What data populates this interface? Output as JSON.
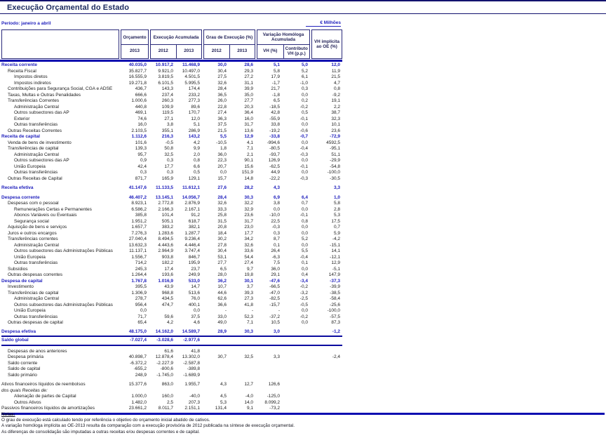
{
  "page": {
    "title": "Execução Orçamental do Estado",
    "period_label": "Período: janeiro a abril",
    "unit_label": "€ Milhões"
  },
  "colors": {
    "accent_blue": "#2121bd",
    "line_navy": "#0b0bb0",
    "title_navy": "#1b2a5e"
  },
  "table": {
    "header": {
      "orcamento": {
        "label": "Orçamento",
        "year": "2013"
      },
      "execucao": {
        "label": "Execução Acumulada",
        "years": [
          "2012",
          "2013"
        ]
      },
      "grau": {
        "label": "Grau de Execução (%)",
        "years": [
          "2012",
          "2013"
        ]
      },
      "variacao": {
        "label": "Variação Homóloga Acumulada",
        "sub1": "VH (%)",
        "sub2_line1": "Contributo",
        "sub2_line2": "VH (p.p.)"
      },
      "implicita": {
        "line1": "VH implícita",
        "line2": "ao OE (%)"
      }
    },
    "rows": [
      {
        "label": "Receita corrente",
        "style": "b",
        "values": [
          "40.035,0",
          "10.917,2",
          "11.468,9",
          "30,0",
          "28,6",
          "5,1",
          "5,0",
          "12,0"
        ]
      },
      {
        "label": "Receita Fiscal",
        "indent": 1,
        "values": [
          "35.827,7",
          "9.921,0",
          "10.497,0",
          "30,4",
          "29,3",
          "5,8",
          "5,2",
          "11,9"
        ]
      },
      {
        "label": "Impostos diretos",
        "indent": 2,
        "values": [
          "16.555,9",
          "3.819,5",
          "4.501,5",
          "27,5",
          "27,2",
          "17,9",
          "6,1",
          "21,5"
        ]
      },
      {
        "label": "Impostos indiretos",
        "indent": 2,
        "values": [
          "19.271,8",
          "6.101,5",
          "5.995,5",
          "32,6",
          "31,1",
          "-1,7",
          "-1,0",
          "4,7"
        ]
      },
      {
        "label": "Contribuições para Segurança Social, CGA e ADSE",
        "indent": 1,
        "values": [
          "436,7",
          "143,3",
          "174,4",
          "28,4",
          "39,9",
          "21,7",
          "0,3",
          "0,8"
        ]
      },
      {
        "label": "Taxas, Multas e Outras Penalidades",
        "indent": 1,
        "values": [
          "666,6",
          "237,4",
          "233,2",
          "36,5",
          "35,0",
          "-1,8",
          "0,0",
          "-9,2"
        ]
      },
      {
        "label": "Transferências Correntes",
        "indent": 1,
        "values": [
          "1.000,6",
          "260,3",
          "277,3",
          "26,0",
          "27,7",
          "6,5",
          "0,2",
          "19,1"
        ]
      },
      {
        "label": "Administração Central",
        "indent": 2,
        "values": [
          "440,8",
          "109,9",
          "89,6",
          "22,8",
          "20,3",
          "-18,5",
          "-0,2",
          "2,2"
        ]
      },
      {
        "label": "Outros subsectores das AP",
        "indent": 2,
        "values": [
          "469,1",
          "119,5",
          "170,7",
          "27,4",
          "36,4",
          "42,8",
          "0,5",
          "38,7"
        ]
      },
      {
        "label": "Exterior",
        "indent": 2,
        "values": [
          "74,6",
          "27,1",
          "12,0",
          "36,3",
          "16,0",
          "-55,9",
          "-0,1",
          "32,3"
        ]
      },
      {
        "label": "Outras transferências",
        "indent": 2,
        "values": [
          "16,0",
          "3,8",
          "5,1",
          "37,5",
          "31,7",
          "33,8",
          "0,0",
          "10,1"
        ]
      },
      {
        "label": "Outras Receitas Correntes",
        "indent": 1,
        "values": [
          "2.103,5",
          "355,1",
          "286,9",
          "21,5",
          "13,6",
          "-19,2",
          "-0,6",
          "23,6"
        ]
      },
      {
        "label": "Receita de capital",
        "style": "b",
        "values": [
          "1.112,6",
          "216,3",
          "143,2",
          "5,5",
          "12,9",
          "-33,8",
          "-0,7",
          "-72,9"
        ]
      },
      {
        "label": "Venda de bens de investimento",
        "indent": 1,
        "values": [
          "101,6",
          "-0,5",
          "4,2",
          "-10,5",
          "4,1",
          "-994,6",
          "0,0",
          "4592,5"
        ]
      },
      {
        "label": "Transferências de capital",
        "indent": 1,
        "values": [
          "139,3",
          "50,8",
          "9,9",
          "1,8",
          "7,1",
          "-80,5",
          "-0,4",
          "-95,1"
        ]
      },
      {
        "label": "Administração Central",
        "indent": 2,
        "values": [
          "95,7",
          "32,5",
          "2,0",
          "36,0",
          "2,1",
          "-93,7",
          "-0,3",
          "51,1"
        ]
      },
      {
        "label": "Outros subsectores das AP",
        "indent": 2,
        "values": [
          "0,9",
          "0,3",
          "0,8",
          "22,3",
          "90,1",
          "126,9",
          "0,0",
          "-29,9"
        ]
      },
      {
        "label": "União Europeia",
        "indent": 2,
        "values": [
          "42,4",
          "17,7",
          "6,6",
          "20,7",
          "15,6",
          "-62,5",
          "-0,1",
          "-54,8"
        ]
      },
      {
        "label": "Outras transferências",
        "indent": 2,
        "values": [
          "0,3",
          "0,3",
          "0,5",
          "0,0",
          "151,9",
          "44,9",
          "0,0",
          "-100,0"
        ]
      },
      {
        "label": "Outras Receitas de Capital",
        "indent": 1,
        "values": [
          "871,7",
          "165,9",
          "129,1",
          "15,7",
          "14,8",
          "-22,2",
          "-0,3",
          "-30,5"
        ]
      },
      {
        "type": "spacer",
        "h": 5
      },
      {
        "label": "Receita efetiva",
        "style": "b",
        "values": [
          "41.147,6",
          "11.133,5",
          "11.612,1",
          "27,6",
          "28,2",
          "4,3",
          "",
          "3,3"
        ]
      },
      {
        "type": "spacer",
        "h": 5
      },
      {
        "label": "Despesa corrente",
        "style": "b",
        "values": [
          "46.407,2",
          "13.145,1",
          "14.056,7",
          "28,4",
          "30,3",
          "6,9",
          "6,4",
          "1,0"
        ]
      },
      {
        "label": "Despesas com o pessoal",
        "indent": 1,
        "values": [
          "8.923,1",
          "2.772,8",
          "2.876,9",
          "32,6",
          "32,2",
          "3,8",
          "0,7",
          "5,8"
        ]
      },
      {
        "label": "Remunerações Certas e Permanentes",
        "indent": 2,
        "values": [
          "6.586,2",
          "2.166,3",
          "2.167,1",
          "33,3",
          "32,9",
          "0,0",
          "0,0",
          "2,8"
        ]
      },
      {
        "label": "Abonos Variáveis ou Eventuais",
        "indent": 2,
        "values": [
          "385,8",
          "101,4",
          "91,2",
          "25,8",
          "23,6",
          "-10,0",
          "-0,1",
          "5,3"
        ]
      },
      {
        "label": "Segurança social",
        "indent": 2,
        "values": [
          "1.951,2",
          "505,1",
          "618,7",
          "31,5",
          "31,7",
          "22,5",
          "0,8",
          "17,5"
        ]
      },
      {
        "label": "Aquisição de bens e serviços",
        "indent": 1,
        "values": [
          "1.657,7",
          "383,2",
          "382,1",
          "20,8",
          "23,0",
          "-0,3",
          "0,0",
          "0,7"
        ]
      },
      {
        "label": "Juros e outros encargos",
        "indent": 1,
        "values": [
          "7.276,3",
          "1.283,6",
          "1.287,7",
          "18,4",
          "17,7",
          "0,3",
          "0,0",
          "5,9"
        ]
      },
      {
        "label": "Transferências correntes",
        "indent": 1,
        "values": [
          "27.040,4",
          "8.494,5",
          "9.236,4",
          "30,2",
          "34,2",
          "8,7",
          "5,2",
          "-4,2"
        ]
      },
      {
        "label": "Administração Central",
        "indent": 2,
        "values": [
          "13.632,3",
          "4.443,6",
          "4.446,4",
          "27,8",
          "32,6",
          "0,1",
          "0,0",
          "-15,1"
        ]
      },
      {
        "label": "Outros subsectores das Administrações Públicas",
        "indent": 2,
        "values": [
          "11.137,1",
          "2.964,9",
          "3.747,4",
          "30,4",
          "33,6",
          "26,4",
          "5,5",
          "14,1"
        ]
      },
      {
        "label": "União Europeia",
        "indent": 2,
        "values": [
          "1.556,7",
          "903,8",
          "846,7",
          "53,1",
          "54,4",
          "-6,3",
          "-0,4",
          "-12,1"
        ]
      },
      {
        "label": "Outras transferências",
        "indent": 2,
        "values": [
          "714,2",
          "182,2",
          "195,9",
          "27,7",
          "27,4",
          "7,5",
          "0,1",
          "12,9"
        ]
      },
      {
        "label": "Subsídios",
        "indent": 1,
        "values": [
          "245,3",
          "17,4",
          "23,7",
          "6,5",
          "9,7",
          "36,0",
          "0,0",
          "-5,1"
        ]
      },
      {
        "label": "Outras despesas correntes",
        "indent": 1,
        "values": [
          "1.264,4",
          "193,6",
          "249,9",
          "28,0",
          "19,8",
          "29,1",
          "0,4",
          "147,9"
        ]
      },
      {
        "label": "Despesa de capital",
        "style": "b",
        "values": [
          "1.767,8",
          "1.016,9",
          "533,0",
          "36,2",
          "30,1",
          "-47,6",
          "-3,4",
          "-37,3"
        ]
      },
      {
        "label": "Investimento",
        "indent": 1,
        "values": [
          "395,5",
          "43,9",
          "14,7",
          "10,7",
          "3,7",
          "-66,5",
          "-0,2",
          "-39,9"
        ]
      },
      {
        "label": "Transferências de capital",
        "indent": 1,
        "values": [
          "1.306,9",
          "968,8",
          "513,6",
          "44,6",
          "39,3",
          "-47,0",
          "-3,2",
          "-38,5"
        ]
      },
      {
        "label": "Administração Central",
        "indent": 2,
        "values": [
          "278,7",
          "434,5",
          "76,0",
          "62,6",
          "27,3",
          "-82,5",
          "-2,5",
          "-58,4"
        ]
      },
      {
        "label": "Outros subsectores das Administrações Públicas",
        "indent": 2,
        "values": [
          "956,4",
          "474,7",
          "400,1",
          "36,6",
          "41,8",
          "-15,7",
          "-0,5",
          "-25,6"
        ]
      },
      {
        "label": "União Europeia",
        "indent": 2,
        "values": [
          "0,0",
          "",
          "0,0",
          "-",
          "-",
          "-",
          "0,0",
          "-100,0"
        ]
      },
      {
        "label": "Outras transferências",
        "indent": 2,
        "values": [
          "71,7",
          "59,6",
          "37,5",
          "33,0",
          "52,3",
          "-37,2",
          "-0,2",
          "-57,5"
        ]
      },
      {
        "label": "Outras despesas de capital",
        "indent": 1,
        "values": [
          "65,4",
          "4,2",
          "4,6",
          "49,0",
          "7,1",
          "10,5",
          "0,0",
          "87,3"
        ]
      },
      {
        "type": "spacer",
        "h": 4
      },
      {
        "label": "Despesa efetiva",
        "style": "b",
        "values": [
          "48.175,0",
          "14.162,0",
          "14.589,7",
          "28,9",
          "30,3",
          "3,0",
          "",
          "-1,2"
        ]
      },
      {
        "type": "rule"
      },
      {
        "label": "Saldo global",
        "style": "b",
        "values": [
          "-7.027,4",
          "-3.028,6",
          "-2.977,6",
          "",
          "",
          "",
          "",
          ""
        ]
      },
      {
        "type": "rule"
      },
      {
        "type": "spacer",
        "h": 3
      },
      {
        "label": "Despesas de anos anteriores",
        "indent": 1,
        "values": [
          "",
          "61,6",
          "41,8",
          "",
          "",
          "",
          "",
          ""
        ]
      },
      {
        "label": "Despesa primária",
        "indent": 1,
        "values": [
          "40.898,7",
          "12.878,4",
          "13.302,0",
          "30,7",
          "32,5",
          "3,3",
          "",
          "-2,4"
        ]
      },
      {
        "label": "Saldo corrente",
        "indent": 1,
        "values": [
          "-6.372,2",
          "-2.227,9",
          "-2.587,8",
          "",
          "",
          "",
          "",
          ""
        ]
      },
      {
        "label": "Saldo de capital",
        "indent": 1,
        "values": [
          "-655,2",
          "-800,6",
          "-389,8",
          "",
          "",
          "",
          "",
          ""
        ]
      },
      {
        "label": "Saldo primário",
        "indent": 1,
        "values": [
          "248,9",
          "-1.745,0",
          "-1.689,9",
          "",
          "",
          "",
          "",
          ""
        ]
      },
      {
        "type": "spacer",
        "h": 5
      },
      {
        "label": "Ativos financeiros líquidos de reembolsos",
        "values": [
          "15.377,6",
          "863,0",
          "1.955,7",
          "4,3",
          "12,7",
          "126,6",
          "",
          ""
        ]
      },
      {
        "label": "dos quais Receitas de:",
        "style": "i",
        "values": [
          "",
          "",
          "",
          "",
          "",
          "",
          "",
          ""
        ]
      },
      {
        "label": "Alienação de partes de Capital",
        "indent": 2,
        "values": [
          "1.000,0",
          "160,0",
          "-40,0",
          "4,5",
          "-4,0",
          "-125,0",
          "",
          ""
        ]
      },
      {
        "label": "Outros Ativos",
        "indent": 2,
        "values": [
          "1.482,0",
          "2,5",
          "207,3",
          "5,3",
          "14,0",
          "8.099,2",
          "",
          ""
        ]
      },
      {
        "label": "Passivos financeiros líquidos de amortizações",
        "values": [
          "23.661,2",
          "8.011,7",
          "2.151,1",
          "131,4",
          "9,1",
          "-73,2",
          "",
          ""
        ]
      },
      {
        "type": "rule",
        "thick": true,
        "full": true
      }
    ]
  },
  "notes": {
    "title": "Notas:",
    "lines": [
      "O grau de execução está calculado tendo por referência o objetivo do orçamento inicial abatido de cativos.",
      "A variação homóloga implícita ao OE-2013 resulta da comparação com a execução provisória de 2012 publicada na síntese de execução orçamental.",
      "As diferenças de consolidação são imputadas a outras receitas e/ou despesas correntes e de capital."
    ]
  }
}
